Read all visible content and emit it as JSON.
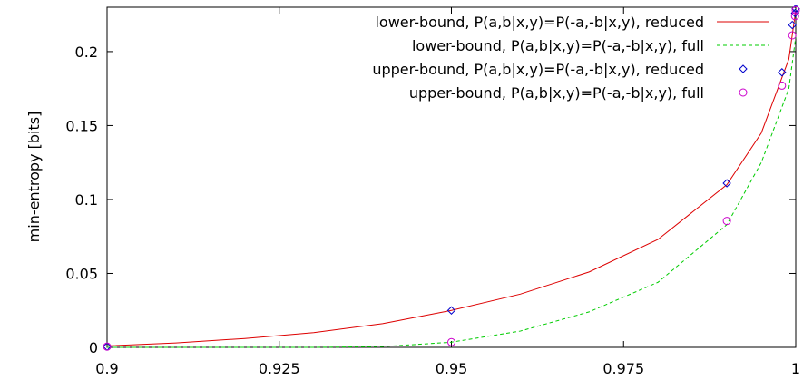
{
  "chart_data": {
    "type": "line",
    "title": "",
    "xlabel": "",
    "ylabel": "min-entropy [bits]",
    "xlim": [
      0.9,
      1.0
    ],
    "ylim": [
      0,
      0.23
    ],
    "grid": false,
    "legend_position": "top-right",
    "x_ticks": [
      0.9,
      0.925,
      0.95,
      0.975,
      1.0
    ],
    "x_tick_labels": [
      "0.9",
      "0.925",
      "0.95",
      "0.975",
      "1"
    ],
    "y_ticks": [
      0,
      0.05,
      0.1,
      0.15,
      0.2
    ],
    "y_tick_labels": [
      "0",
      "0.05",
      "0.1",
      "0.15",
      "0.2"
    ],
    "series": [
      {
        "name": "lower-bound, P(a,b|x,y)=P(-a,-b|x,y), reduced",
        "style": "line",
        "dash": "solid",
        "color": "#dd0000",
        "x": [
          0.9,
          0.91,
          0.92,
          0.93,
          0.94,
          0.95,
          0.96,
          0.97,
          0.98,
          0.99,
          0.995,
          0.999,
          1.0
        ],
        "y": [
          0.001,
          0.003,
          0.006,
          0.01,
          0.016,
          0.025,
          0.036,
          0.051,
          0.073,
          0.11,
          0.145,
          0.195,
          0.228
        ]
      },
      {
        "name": "lower-bound, P(a,b|x,y)=P(-a,-b|x,y), full",
        "style": "line",
        "dash": "dashed",
        "color": "#00cc00",
        "x": [
          0.9,
          0.93,
          0.94,
          0.95,
          0.96,
          0.97,
          0.98,
          0.99,
          0.995,
          0.999,
          1.0
        ],
        "y": [
          0,
          0,
          0.0005,
          0.0035,
          0.011,
          0.024,
          0.044,
          0.083,
          0.125,
          0.175,
          0.21
        ]
      },
      {
        "name": "upper-bound, P(a,b|x,y)=P(-a,-b|x,y), reduced",
        "style": "points",
        "marker": "diamond",
        "color": "#0000cc",
        "x": [
          0.9,
          0.95,
          0.99,
          0.998,
          0.9995,
          0.9999,
          1.0
        ],
        "y": [
          0.0005,
          0.025,
          0.111,
          0.186,
          0.218,
          0.226,
          0.229
        ]
      },
      {
        "name": "upper-bound, P(a,b|x,y)=P(-a,-b|x,y), full",
        "style": "points",
        "marker": "circle",
        "color": "#cc00cc",
        "x": [
          0.9,
          0.95,
          0.99,
          0.998,
          0.9995,
          0.9999,
          1.0
        ],
        "y": [
          0.0005,
          0.0035,
          0.0855,
          0.177,
          0.211,
          0.224,
          0.228
        ]
      }
    ]
  }
}
